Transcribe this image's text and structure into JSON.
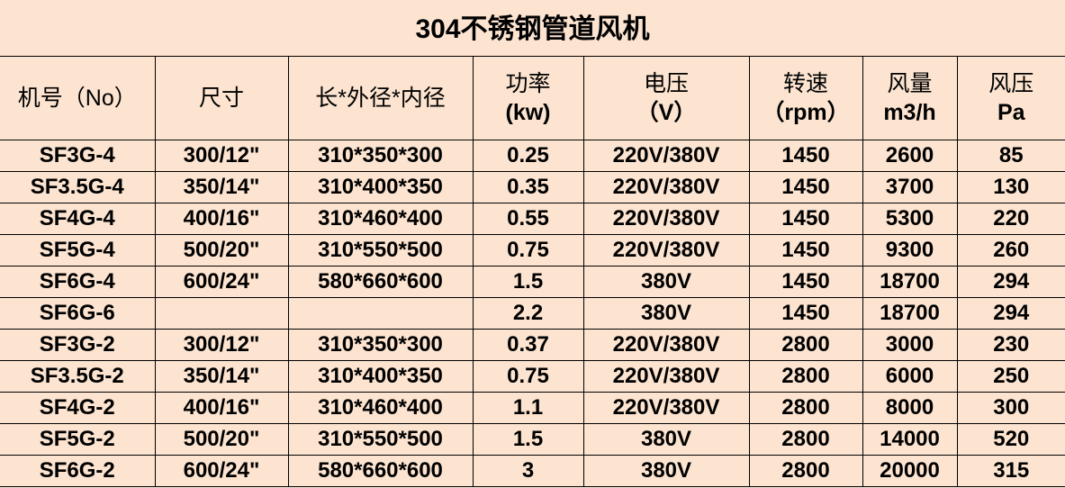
{
  "title": "304不锈钢管道风机",
  "table": {
    "header": [
      [
        "机号（No）"
      ],
      [
        "尺寸"
      ],
      [
        "长*外径*内径"
      ],
      [
        "功率",
        "(kw)"
      ],
      [
        "电压",
        "（V）"
      ],
      [
        "转速",
        "（rpm）"
      ],
      [
        "风量",
        "m3/h"
      ],
      [
        "风压",
        "Pa"
      ]
    ],
    "rows": [
      [
        "SF3G-4",
        "300/12\"",
        "310*350*300",
        "0.25",
        "220V/380V",
        "1450",
        "2600",
        "85"
      ],
      [
        "SF3.5G-4",
        "350/14\"",
        "310*400*350",
        "0.35",
        "220V/380V",
        "1450",
        "3700",
        "130"
      ],
      [
        "SF4G-4",
        "400/16\"",
        "310*460*400",
        "0.55",
        "220V/380V",
        "1450",
        "5300",
        "220"
      ],
      [
        "SF5G-4",
        "500/20\"",
        "310*550*500",
        "0.75",
        "220V/380V",
        "1450",
        "9300",
        "260"
      ],
      [
        "SF6G-4",
        "600/24\"",
        "580*660*600",
        "1.5",
        "380V",
        "1450",
        "18700",
        "294"
      ],
      [
        "SF6G-6",
        null,
        null,
        "2.2",
        "380V",
        "1450",
        "18700",
        "294"
      ],
      [
        "SF3G-2",
        "300/12\"",
        "310*350*300",
        "0.37",
        "220V/380V",
        "2800",
        "3000",
        "230"
      ],
      [
        "SF3.5G-2",
        "350/14\"",
        "310*400*350",
        "0.75",
        "220V/380V",
        "2800",
        "6000",
        "250"
      ],
      [
        "SF4G-2",
        "400/16\"",
        "310*460*400",
        "1.1",
        "220V/380V",
        "2800",
        "8000",
        "300"
      ],
      [
        "SF5G-2",
        "500/20\"",
        "310*550*500",
        "1.5",
        "380V",
        "2800",
        "14000",
        "520"
      ],
      [
        "SF6G-2",
        "600/24\"",
        "580*660*600",
        "3",
        "380V",
        "2800",
        "20000",
        "315"
      ]
    ]
  }
}
